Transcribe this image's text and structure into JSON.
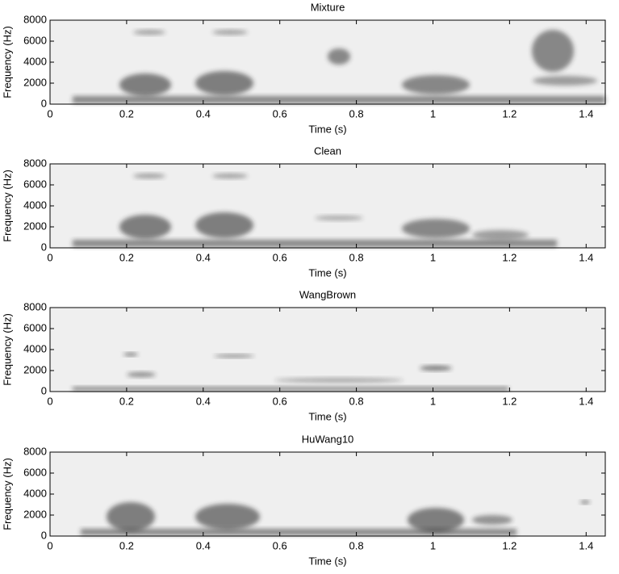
{
  "chart_data": [
    {
      "type": "spectrogram",
      "title": "Mixture",
      "xlabel": "Time (s)",
      "ylabel": "Frequency (Hz)",
      "xlim": [
        0,
        1.45
      ],
      "ylim": [
        0,
        8000
      ],
      "xticks": [
        0,
        0.2,
        0.4,
        0.6,
        0.8,
        1,
        1.2,
        1.4
      ],
      "yticks": [
        0,
        2000,
        4000,
        6000,
        8000
      ]
    },
    {
      "type": "spectrogram",
      "title": "Clean",
      "xlabel": "Time (s)",
      "ylabel": "Frequency (Hz)",
      "xlim": [
        0,
        1.45
      ],
      "ylim": [
        0,
        8000
      ],
      "xticks": [
        0,
        0.2,
        0.4,
        0.6,
        0.8,
        1,
        1.2,
        1.4
      ],
      "yticks": [
        0,
        2000,
        4000,
        6000,
        8000
      ]
    },
    {
      "type": "spectrogram",
      "title": "WangBrown",
      "xlabel": "Time (s)",
      "ylabel": "Frequency (Hz)",
      "xlim": [
        0,
        1.45
      ],
      "ylim": [
        0,
        8000
      ],
      "xticks": [
        0,
        0.2,
        0.4,
        0.6,
        0.8,
        1,
        1.2,
        1.4
      ],
      "yticks": [
        0,
        2000,
        4000,
        6000,
        8000
      ]
    },
    {
      "type": "spectrogram",
      "title": "HuWang10",
      "xlabel": "Time (s)",
      "ylabel": "Frequency (Hz)",
      "xlim": [
        0,
        1.45
      ],
      "ylim": [
        0,
        8000
      ],
      "xticks": [
        0,
        0.2,
        0.4,
        0.6,
        0.8,
        1,
        1.2,
        1.4
      ],
      "yticks": [
        0,
        2000,
        4000,
        6000,
        8000
      ]
    }
  ]
}
